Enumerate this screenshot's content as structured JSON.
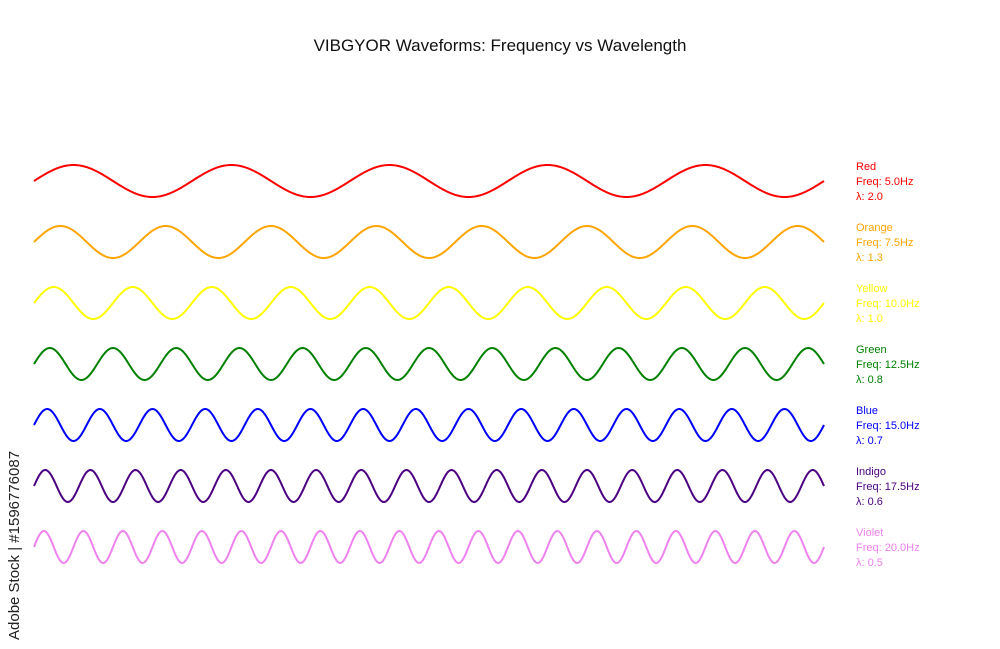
{
  "title": "VIBGYOR Waveforms: Frequency vs Wavelength",
  "watermark": "Adobe Stock | #1596776087",
  "chart_data": {
    "type": "line",
    "title": "VIBGYOR Waveforms: Frequency vs Wavelength",
    "x_range": [
      0,
      10
    ],
    "amplitude": 1,
    "series": [
      {
        "name": "Red",
        "freq_label": "Freq: 5.0Hz",
        "lambda_label": "λ: 2.0",
        "frequency": 5.0,
        "wavelength": 2.0,
        "color": "#ff0000"
      },
      {
        "name": "Orange",
        "freq_label": "Freq: 7.5Hz",
        "lambda_label": "λ: 1.3",
        "frequency": 7.5,
        "wavelength": 1.3,
        "color": "#ffa500"
      },
      {
        "name": "Yellow",
        "freq_label": "Freq: 10.0Hz",
        "lambda_label": "λ: 1.0",
        "frequency": 10.0,
        "wavelength": 1.0,
        "color": "#ffff00"
      },
      {
        "name": "Green",
        "freq_label": "Freq: 12.5Hz",
        "lambda_label": "λ: 0.8",
        "frequency": 12.5,
        "wavelength": 0.8,
        "color": "#008000"
      },
      {
        "name": "Blue",
        "freq_label": "Freq: 15.0Hz",
        "lambda_label": "λ: 0.7",
        "frequency": 15.0,
        "wavelength": 0.7,
        "color": "#0000ff"
      },
      {
        "name": "Indigo",
        "freq_label": "Freq: 17.5Hz",
        "lambda_label": "λ: 0.6",
        "frequency": 17.5,
        "wavelength": 0.6,
        "color": "#4b0082"
      },
      {
        "name": "Violet",
        "freq_label": "Freq: 20.0Hz",
        "lambda_label": "λ: 0.5",
        "frequency": 20.0,
        "wavelength": 0.5,
        "color": "#ee82ee"
      }
    ]
  }
}
